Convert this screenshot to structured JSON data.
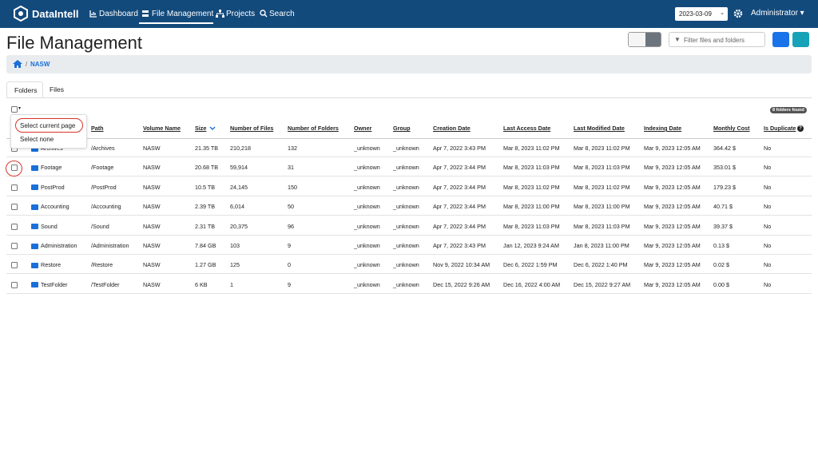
{
  "nav": {
    "brand": "DataIntell",
    "links": [
      "Dashboard",
      "File Management",
      "Projects",
      "Search"
    ],
    "date": "2023-03-09",
    "user": "Administrator"
  },
  "header": {
    "title": "File Management",
    "filter_placeholder": "Filter files and folders"
  },
  "breadcrumb": {
    "current": "NASW"
  },
  "tabs": [
    "Folders",
    "Files"
  ],
  "select_menu": [
    "Select current page",
    "Select none"
  ],
  "badge": "8 folders found",
  "table": {
    "headers": [
      "Path",
      "Volume Name",
      "Size",
      "Number of Files",
      "Number of Folders",
      "Owner",
      "Group",
      "Creation Date",
      "Last Access Date",
      "Last Modified Date",
      "Indexing Date",
      "Monthly Cost",
      "Is Duplicate"
    ],
    "rows": [
      [
        "Archives",
        "/Archives",
        "NASW",
        "21.35 TB",
        "210,218",
        "132",
        "_unknown",
        "_unknown",
        "Apr 7, 2022 3:43 PM",
        "Mar 8, 2023 11:02 PM",
        "Mar 8, 2023 11:02 PM",
        "Mar 9, 2023 12:05 AM",
        "364.42 $",
        "No"
      ],
      [
        "Footage",
        "/Footage",
        "NASW",
        "20.68 TB",
        "59,914",
        "31",
        "_unknown",
        "_unknown",
        "Apr 7, 2022 3:44 PM",
        "Mar 8, 2023 11:03 PM",
        "Mar 8, 2023 11:03 PM",
        "Mar 9, 2023 12:05 AM",
        "353.01 $",
        "No"
      ],
      [
        "PostProd",
        "/PostProd",
        "NASW",
        "10.5 TB",
        "24,145",
        "150",
        "_unknown",
        "_unknown",
        "Apr 7, 2022 3:44 PM",
        "Mar 8, 2023 11:02 PM",
        "Mar 8, 2023 11:02 PM",
        "Mar 9, 2023 12:05 AM",
        "179.23 $",
        "No"
      ],
      [
        "Accounting",
        "/Accounting",
        "NASW",
        "2.39 TB",
        "6,014",
        "50",
        "_unknown",
        "_unknown",
        "Apr 7, 2022 3:44 PM",
        "Mar 8, 2023 11:00 PM",
        "Mar 8, 2023 11:00 PM",
        "Mar 9, 2023 12:05 AM",
        "40.71 $",
        "No"
      ],
      [
        "Sound",
        "/Sound",
        "NASW",
        "2.31 TB",
        "20,375",
        "96",
        "_unknown",
        "_unknown",
        "Apr 7, 2022 3:44 PM",
        "Mar 8, 2023 11:03 PM",
        "Mar 8, 2023 11:03 PM",
        "Mar 9, 2023 12:05 AM",
        "39.37 $",
        "No"
      ],
      [
        "Administration",
        "/Administration",
        "NASW",
        "7.84 GB",
        "103",
        "9",
        "_unknown",
        "_unknown",
        "Apr 7, 2022 3:43 PM",
        "Jan 12, 2023 9:24 AM",
        "Jan 8, 2023 11:00 PM",
        "Mar 9, 2023 12:05 AM",
        "0.13 $",
        "No"
      ],
      [
        "Restore",
        "/Restore",
        "NASW",
        "1.27 GB",
        "125",
        "0",
        "_unknown",
        "_unknown",
        "Nov 9, 2022 10:34 AM",
        "Dec 6, 2022 1:59 PM",
        "Dec 6, 2022 1:40 PM",
        "Mar 9, 2023 12:05 AM",
        "0.02 $",
        "No"
      ],
      [
        "TestFolder",
        "/TestFolder",
        "NASW",
        "6 KB",
        "1",
        "9",
        "_unknown",
        "_unknown",
        "Dec 15, 2022 9:26 AM",
        "Dec 16, 2022 4:00 AM",
        "Dec 15, 2022 9:27 AM",
        "Mar 9, 2023 12:05 AM",
        "0.00 $",
        "No"
      ]
    ]
  }
}
